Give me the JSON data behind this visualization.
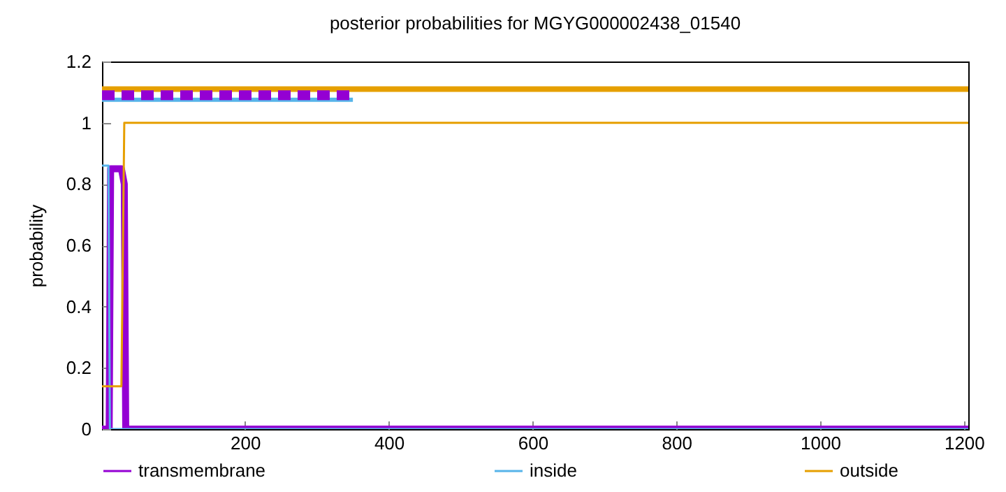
{
  "chart_data": {
    "type": "line",
    "title": "posterior probabilities for MGYG000002438_01540",
    "ylabel": "probability",
    "xlim": [
      1,
      1206
    ],
    "xticks": [
      200,
      400,
      600,
      800,
      1000,
      1200
    ],
    "ylim": [
      0,
      1.2
    ],
    "yticks": [
      0,
      0.2,
      0.4,
      0.6,
      0.8,
      1,
      1.2
    ],
    "grid": false,
    "legend": "bottom",
    "marker": "none",
    "series": [
      {
        "name": "transmembrane",
        "color": "#9400d3",
        "x": [
          1,
          11,
          13,
          28,
          32,
          34,
          1206
        ],
        "values": [
          0,
          0,
          0.85,
          0.85,
          0.8,
          0,
          0
        ]
      },
      {
        "name": "inside",
        "color": "#56b4e9",
        "x": [
          1,
          10,
          12,
          1206
        ],
        "values": [
          0.86,
          0.86,
          0,
          0
        ]
      },
      {
        "name": "outside",
        "color": "#e69f00",
        "x": [
          1,
          28,
          32,
          1206
        ],
        "values": [
          0.14,
          0.14,
          1,
          1
        ]
      },
      {
        "color": "#e69f00",
        "x": [
          1,
          1206
        ],
        "values": [
          1.11,
          1.11
        ]
      },
      {
        "color": "#56b4e9",
        "x": [
          1,
          350
        ],
        "values": [
          1.075,
          1.075
        ]
      },
      {
        "color": "#9400d3",
        "x": [
          1,
          350
        ],
        "values": [
          1.09,
          1.09
        ],
        "line_style": "dashed"
      }
    ]
  }
}
